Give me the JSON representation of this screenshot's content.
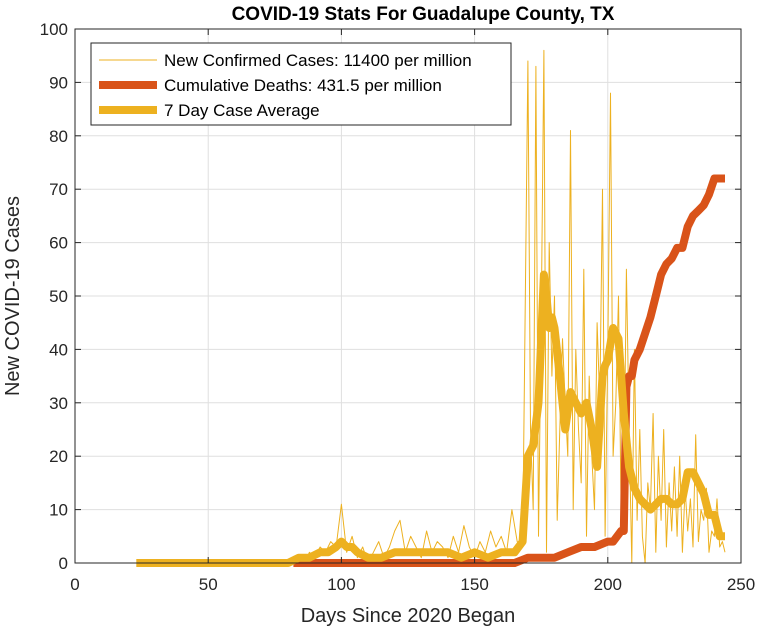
{
  "chart_data": {
    "type": "line",
    "title": "COVID-19 Stats For Guadalupe County, TX",
    "xlabel": "Days Since 2020 Began",
    "ylabel": "New COVID-19 Cases",
    "xlim": [
      0,
      250
    ],
    "ylim": [
      0,
      100
    ],
    "xticks": [
      0,
      50,
      100,
      150,
      200,
      250
    ],
    "yticks": [
      0,
      10,
      20,
      30,
      40,
      50,
      60,
      70,
      80,
      90,
      100
    ],
    "grid": true,
    "legend_position": "top-left",
    "series": [
      {
        "name": "New Confirmed Cases: 11400 per million",
        "color": "#EDB120",
        "style": "thin",
        "x": [
          82,
          84,
          86,
          88,
          90,
          92,
          94,
          96,
          98,
          100,
          102,
          104,
          106,
          108,
          110,
          112,
          114,
          116,
          118,
          120,
          122,
          124,
          126,
          128,
          130,
          132,
          134,
          136,
          138,
          140,
          142,
          144,
          146,
          148,
          150,
          152,
          154,
          156,
          158,
          160,
          162,
          164,
          166,
          168,
          170,
          171,
          172,
          173,
          174,
          175,
          176,
          177,
          178,
          179,
          180,
          181,
          182,
          183,
          184,
          185,
          186,
          187,
          188,
          189,
          190,
          191,
          192,
          193,
          194,
          195,
          196,
          197,
          198,
          199,
          200,
          201,
          202,
          203,
          204,
          205,
          206,
          207,
          208,
          209,
          210,
          211,
          212,
          213,
          214,
          215,
          216,
          217,
          218,
          219,
          220,
          221,
          222,
          223,
          224,
          225,
          226,
          227,
          228,
          229,
          230,
          231,
          232,
          233,
          234,
          235,
          236,
          237,
          238,
          239,
          240,
          241,
          242,
          243,
          244
        ],
        "y": [
          0,
          1,
          0,
          2,
          1,
          3,
          2,
          4,
          3,
          11,
          2,
          5,
          1,
          3,
          0,
          2,
          4,
          1,
          3,
          6,
          8,
          2,
          5,
          3,
          1,
          6,
          2,
          4,
          3,
          1,
          5,
          2,
          7,
          3,
          1,
          4,
          2,
          6,
          3,
          5,
          2,
          10,
          4,
          3,
          94,
          25,
          10,
          93,
          5,
          45,
          96,
          2,
          60,
          35,
          50,
          8,
          25,
          42,
          30,
          20,
          81,
          10,
          40,
          25,
          15,
          55,
          5,
          35,
          20,
          10,
          45,
          30,
          70,
          5,
          40,
          88,
          20,
          30,
          50,
          10,
          12,
          55,
          25,
          0,
          40,
          8,
          25,
          5,
          0,
          15,
          10,
          28,
          2,
          20,
          8,
          25,
          3,
          15,
          6,
          18,
          5,
          20,
          2,
          14,
          6,
          12,
          3,
          24,
          4,
          10,
          8,
          14,
          2,
          6,
          5,
          12,
          3,
          4,
          2
        ],
        "values_note": ""
      },
      {
        "name": "Cumulative Deaths: 431.5 per million",
        "color": "#D95319",
        "style": "thick",
        "x": [
          82,
          100,
          120,
          150,
          165,
          170,
          172,
          180,
          185,
          190,
          195,
          200,
          202,
          205,
          206,
          207,
          208,
          209,
          210,
          212,
          214,
          216,
          218,
          220,
          222,
          224,
          226,
          228,
          230,
          232,
          234,
          236,
          238,
          240,
          242,
          244
        ],
        "y": [
          0,
          0,
          0,
          0,
          0,
          1,
          1,
          1,
          2,
          3,
          3,
          4,
          4,
          6,
          6,
          33,
          35,
          35,
          38,
          40,
          43,
          46,
          50,
          54,
          56,
          57,
          59,
          59,
          63,
          65,
          66,
          67,
          69,
          72,
          72,
          72
        ]
      },
      {
        "name": "7 Day Case Average",
        "color": "#EDB120",
        "style": "thick",
        "x": [
          23,
          40,
          60,
          80,
          84,
          88,
          92,
          95,
          98,
          100,
          102,
          104,
          106,
          110,
          115,
          120,
          125,
          130,
          135,
          140,
          145,
          150,
          155,
          160,
          165,
          168,
          170,
          172,
          174,
          176,
          177,
          178,
          179,
          180,
          182,
          184,
          186,
          188,
          190,
          192,
          194,
          196,
          198,
          199,
          200,
          202,
          204,
          206,
          208,
          210,
          212,
          214,
          216,
          218,
          220,
          222,
          224,
          226,
          228,
          230,
          232,
          234,
          236,
          238,
          240,
          242,
          244
        ],
        "y": [
          0,
          0,
          0,
          0,
          1,
          1,
          2,
          2,
          3,
          4,
          3,
          3,
          2,
          1,
          1,
          2,
          2,
          2,
          2,
          2,
          1,
          2,
          1,
          2,
          2,
          4,
          20,
          22,
          30,
          54,
          50,
          44,
          46,
          44,
          35,
          25,
          32,
          30,
          28,
          30,
          25,
          18,
          35,
          37,
          38,
          44,
          42,
          28,
          18,
          14,
          12,
          11,
          10,
          11,
          12,
          12,
          11,
          11,
          12,
          17,
          17,
          15,
          13,
          9,
          9,
          5,
          5
        ]
      }
    ]
  }
}
